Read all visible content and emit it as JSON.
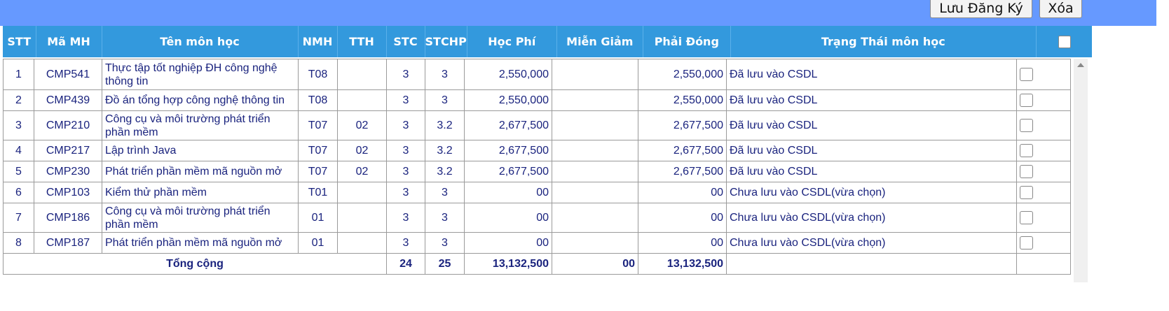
{
  "toolbar": {
    "save_label": "Lưu Đăng Ký",
    "delete_label": "Xóa"
  },
  "table": {
    "headers": [
      "STT",
      "Mã MH",
      "Tên môn học",
      "NMH",
      "TTH",
      "STC",
      "STCHP",
      "Học Phí",
      "Miễn Giảm",
      "Phải Đóng",
      "Trạng Thái môn học"
    ],
    "rows": [
      {
        "stt": "1",
        "code": "CMP541",
        "name": "Thực tập tốt nghiệp ĐH công nghệ thông tin",
        "nmh": "T08",
        "tth": "",
        "stc": "3",
        "stchp": "3",
        "fee": "2,550,000",
        "discount": "",
        "pay": "2,550,000",
        "status": "Đã lưu vào CSDL"
      },
      {
        "stt": "2",
        "code": "CMP439",
        "name": "Đồ án tổng hợp công nghệ thông tin",
        "nmh": "T08",
        "tth": "",
        "stc": "3",
        "stchp": "3",
        "fee": "2,550,000",
        "discount": "",
        "pay": "2,550,000",
        "status": "Đã lưu vào CSDL"
      },
      {
        "stt": "3",
        "code": "CMP210",
        "name": "Công cụ và môi trường phát triển phần mềm",
        "nmh": "T07",
        "tth": "02",
        "stc": "3",
        "stchp": "3.2",
        "fee": "2,677,500",
        "discount": "",
        "pay": "2,677,500",
        "status": "Đã lưu vào CSDL"
      },
      {
        "stt": "4",
        "code": "CMP217",
        "name": "Lập trình Java",
        "nmh": "T07",
        "tth": "02",
        "stc": "3",
        "stchp": "3.2",
        "fee": "2,677,500",
        "discount": "",
        "pay": "2,677,500",
        "status": "Đã lưu vào CSDL"
      },
      {
        "stt": "5",
        "code": "CMP230",
        "name": "Phát triển phần mềm mã nguồn mở",
        "nmh": "T07",
        "tth": "02",
        "stc": "3",
        "stchp": "3.2",
        "fee": "2,677,500",
        "discount": "",
        "pay": "2,677,500",
        "status": "Đã lưu vào CSDL"
      },
      {
        "stt": "6",
        "code": "CMP103",
        "name": "Kiểm thử phần mềm",
        "nmh": "T01",
        "tth": "",
        "stc": "3",
        "stchp": "3",
        "fee": "00",
        "discount": "",
        "pay": "00",
        "status": "Chưa lưu vào CSDL(vừa chọn)"
      },
      {
        "stt": "7",
        "code": "CMP186",
        "name": "Công cụ và môi trường phát triển phần mềm",
        "nmh": "01",
        "tth": "",
        "stc": "3",
        "stchp": "3",
        "fee": "00",
        "discount": "",
        "pay": "00",
        "status": "Chưa lưu vào CSDL(vừa chọn)"
      },
      {
        "stt": "8",
        "code": "CMP187",
        "name": "Phát triển phần mềm mã nguồn mở",
        "nmh": "01",
        "tth": "",
        "stc": "3",
        "stchp": "3",
        "fee": "00",
        "discount": "",
        "pay": "00",
        "status": "Chưa lưu vào CSDL(vừa chọn)"
      }
    ],
    "total": {
      "label": "Tổng cộng",
      "stc": "24",
      "stchp": "25",
      "fee": "13,132,500",
      "discount": "00",
      "pay": "13,132,500"
    }
  }
}
